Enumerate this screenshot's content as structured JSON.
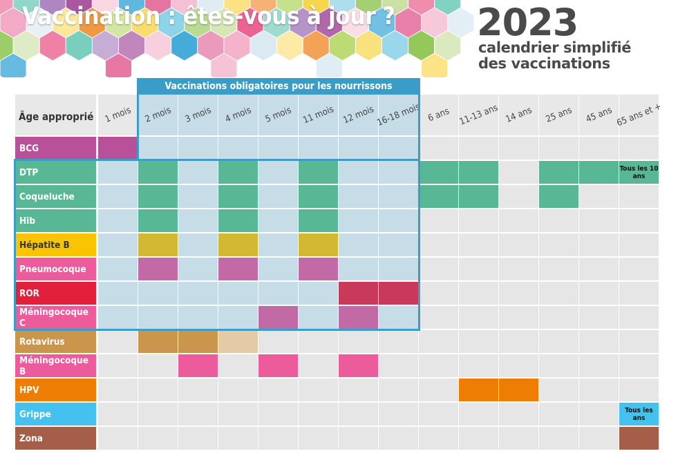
{
  "header": {
    "title": "Vaccination : êtes-vous à jour ?",
    "year": "2023",
    "subtitle_line1": "calendrier simplifié",
    "subtitle_line2": "des vaccinations"
  },
  "table": {
    "age_header": "Âge approprié",
    "mandatory_banner": "Vaccinations obligatoires pour les nourrissons",
    "columns": [
      "1 mois",
      "2 mois",
      "3 mois",
      "4 mois",
      "5 mois",
      "11 mois",
      "12 mois",
      "16-18 mois",
      "6 ans",
      "11-13 ans",
      "14 ans",
      "25 ans",
      "45 ans",
      "65 ans et +"
    ],
    "rows": [
      {
        "name": "BCG",
        "color": "#b8519a",
        "text_dark": false,
        "cells": [
          1,
          0,
          0,
          0,
          0,
          0,
          0,
          0,
          0,
          0,
          0,
          0,
          0,
          0
        ],
        "cell_color": "#b8519a"
      },
      {
        "name": "DTP",
        "color": "#58b896",
        "text_dark": false,
        "cells": [
          0,
          1,
          0,
          1,
          0,
          1,
          0,
          0,
          1,
          1,
          0,
          1,
          1,
          2
        ],
        "cell_color": "#58b896",
        "note": "Tous les 10 ans"
      },
      {
        "name": "Coqueluche",
        "color": "#58b896",
        "text_dark": false,
        "cells": [
          0,
          1,
          0,
          1,
          0,
          1,
          0,
          0,
          1,
          1,
          0,
          1,
          0,
          0
        ],
        "cell_color": "#58b896"
      },
      {
        "name": "Hib",
        "color": "#58b896",
        "text_dark": false,
        "cells": [
          0,
          1,
          0,
          1,
          0,
          1,
          0,
          0,
          0,
          0,
          0,
          0,
          0,
          0
        ],
        "cell_color": "#58b896"
      },
      {
        "name": "Hépatite B",
        "color": "#f9c400",
        "text_dark": true,
        "cells": [
          0,
          1,
          0,
          1,
          0,
          1,
          0,
          0,
          0,
          0,
          0,
          0,
          0,
          0
        ],
        "cell_color": "#d2b833"
      },
      {
        "name": "Pneumocoque",
        "color": "#ec5c9c",
        "text_dark": false,
        "cells": [
          0,
          1,
          0,
          1,
          0,
          1,
          0,
          0,
          0,
          0,
          0,
          0,
          0,
          0
        ],
        "cell_color": "#c26aa6"
      },
      {
        "name": "ROR",
        "color": "#e2203c",
        "text_dark": false,
        "cells": [
          0,
          0,
          0,
          0,
          0,
          0,
          1,
          1,
          0,
          0,
          0,
          0,
          0,
          0
        ],
        "cell_color": "#c93a5a"
      },
      {
        "name": "Méningocoque C",
        "color": "#ec5c9c",
        "text_dark": false,
        "cells": [
          0,
          0,
          0,
          0,
          1,
          0,
          1,
          0,
          0,
          0,
          0,
          0,
          0,
          0
        ],
        "cell_color": "#c26aa6"
      },
      {
        "name": "Rotavirus",
        "color": "#c9964c",
        "text_dark": false,
        "cells": [
          0,
          1,
          1,
          3,
          0,
          0,
          0,
          0,
          0,
          0,
          0,
          0,
          0,
          0
        ],
        "cell_color": "#c9964c",
        "light_color": "#e5cba5"
      },
      {
        "name": "Méningocoque B",
        "color": "#ec5c9c",
        "text_dark": false,
        "cells": [
          0,
          0,
          1,
          0,
          1,
          0,
          1,
          0,
          0,
          0,
          0,
          0,
          0,
          0
        ],
        "cell_color": "#ec5c9c"
      },
      {
        "name": "HPV",
        "color": "#ee7d04",
        "text_dark": false,
        "cells": [
          0,
          0,
          0,
          0,
          0,
          0,
          0,
          0,
          0,
          1,
          1,
          0,
          0,
          0
        ],
        "cell_color": "#ee7d04"
      },
      {
        "name": "Grippe",
        "color": "#44c1ee",
        "text_dark": false,
        "cells": [
          0,
          0,
          0,
          0,
          0,
          0,
          0,
          0,
          0,
          0,
          0,
          0,
          0,
          2
        ],
        "cell_color": "#44c1ee",
        "note": "Tous les ans"
      },
      {
        "name": "Zona",
        "color": "#a55f48",
        "text_dark": false,
        "cells": [
          0,
          0,
          0,
          0,
          0,
          0,
          0,
          0,
          0,
          0,
          0,
          0,
          0,
          1
        ],
        "cell_color": "#a55f48"
      }
    ]
  }
}
